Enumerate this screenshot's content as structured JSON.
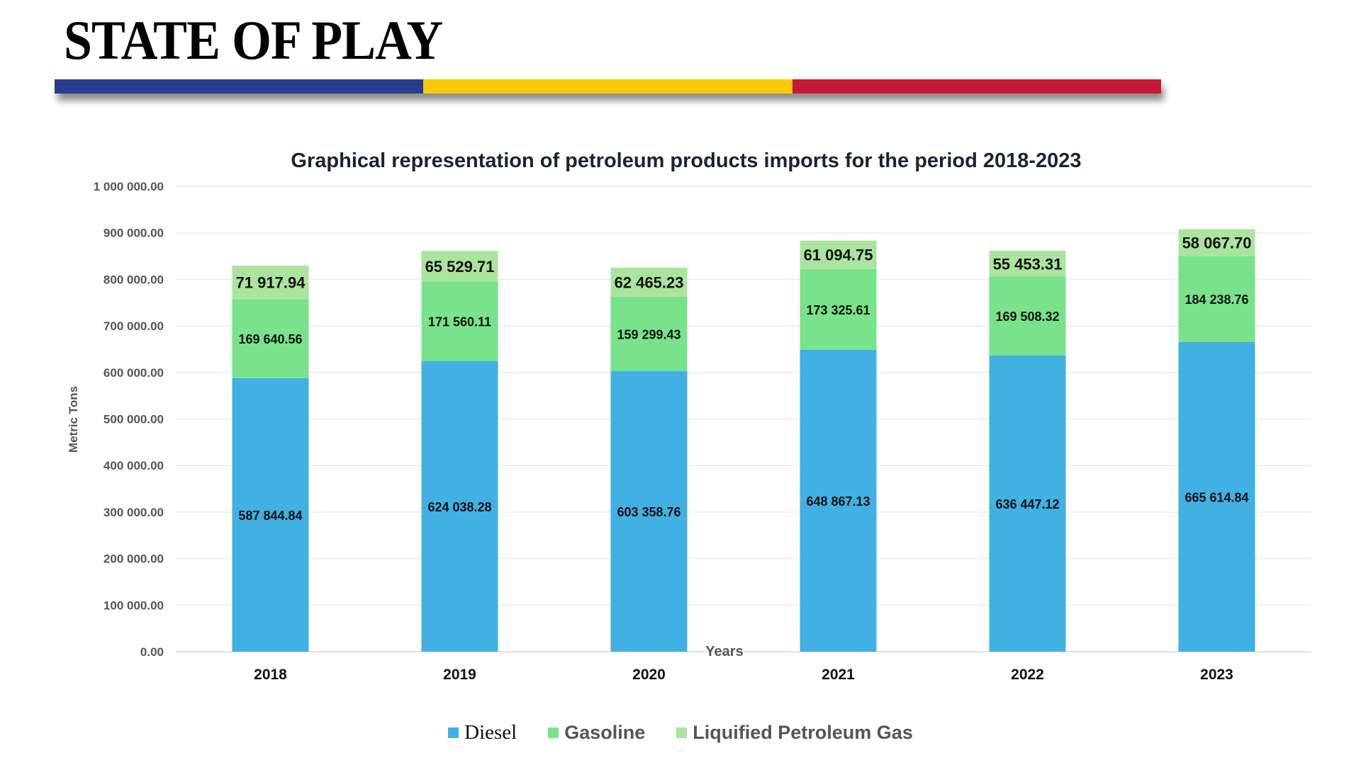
{
  "slide": {
    "title": "STATE OF PLAY",
    "stripe_colors": [
      "#273C8A",
      "#F8C90A",
      "#C51A36"
    ]
  },
  "legend": {
    "items": [
      {
        "label": "Diesel",
        "color": "#41B0E3"
      },
      {
        "label": "Gasoline",
        "color": "#78E38A"
      },
      {
        "label": "Liquified Petroleum Gas",
        "color": "#ABE49E"
      }
    ]
  },
  "chart_data": {
    "type": "bar",
    "stacked": true,
    "title": "Graphical representation of petroleum products imports for the period 2018-2023",
    "xlabel": "Years",
    "ylabel": "Metric Tons",
    "categories": [
      "2018",
      "2019",
      "2020",
      "2021",
      "2022",
      "2023"
    ],
    "ylim": [
      0,
      1000000
    ],
    "yticks": [
      0,
      100000,
      200000,
      300000,
      400000,
      500000,
      600000,
      700000,
      800000,
      900000,
      1000000
    ],
    "ytick_labels": [
      "0.00",
      "100 000.00",
      "200 000.00",
      "300 000.00",
      "400 000.00",
      "500 000.00",
      "600 000.00",
      "700 000.00",
      "800 000.00",
      "900 000.00",
      "1 000 000.00"
    ],
    "grid": true,
    "legend_position": "bottom",
    "series": [
      {
        "name": "Diesel",
        "color": "#41B0E3",
        "values": [
          587844.84,
          624038.28,
          603358.76,
          648867.13,
          636447.12,
          665614.84
        ],
        "labels": [
          "587 844.84",
          "624 038.28",
          "603 358.76",
          "648 867.13",
          "636 447.12",
          "665 614.84"
        ]
      },
      {
        "name": "Gasoline",
        "color": "#78E38A",
        "values": [
          169640.56,
          171560.11,
          159299.43,
          173325.61,
          169508.32,
          184238.76
        ],
        "labels": [
          "169 640.56",
          "171 560.11",
          "159 299.43",
          "173 325.61",
          "169 508.32",
          "184 238.76"
        ]
      },
      {
        "name": "Liquified Petroleum Gas",
        "color": "#ABE49E",
        "values": [
          71917.94,
          65529.71,
          62465.23,
          61094.75,
          55453.31,
          58067.7
        ],
        "labels": [
          "71 917.94",
          "65 529.71",
          "62 465.23",
          "61 094.75",
          "55 453.31",
          "58 067.70"
        ]
      }
    ]
  }
}
